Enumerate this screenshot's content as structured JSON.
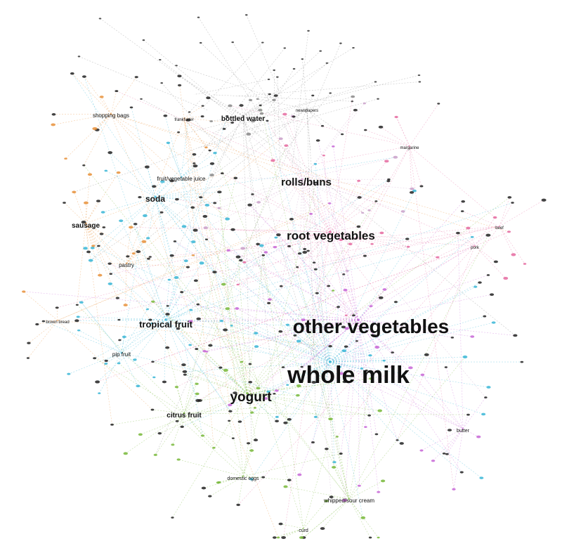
{
  "graph": {
    "hubs": [
      {
        "id": "whole-milk",
        "label": "whole milk",
        "color": "#38b6d6",
        "weight": 10
      },
      {
        "id": "other-vegetables",
        "label": "other vegetables",
        "color": "#c766d6",
        "weight": 9
      },
      {
        "id": "yogurt",
        "label": "yogurt",
        "color": "#78b83a",
        "weight": 6
      },
      {
        "id": "root-vegetables",
        "label": "root vegetables",
        "color": "#e56aa0",
        "weight": 5
      },
      {
        "id": "rolls-buns",
        "label": "rolls/buns",
        "color": "#c9a0c9",
        "weight": 4
      },
      {
        "id": "tropical-fruit",
        "label": "tropical fruit",
        "color": "#38b6d6",
        "weight": 4
      },
      {
        "id": "soda",
        "label": "soda",
        "color": "#38b6d6",
        "weight": 3
      },
      {
        "id": "bottled-water",
        "label": "bottled water",
        "color": "#888888",
        "weight": 2
      },
      {
        "id": "sausage",
        "label": "sausage",
        "color": "#e8903a",
        "weight": 2
      },
      {
        "id": "citrus-fruit",
        "label": "citrus fruit",
        "color": "#78b83a",
        "weight": 2
      },
      {
        "id": "shopping-bags",
        "label": "shopping bags",
        "color": "#e8903a",
        "weight": 1
      },
      {
        "id": "fruit-vegetable-juice",
        "label": "fruit/vegetable juice",
        "color": "#38b6d6",
        "weight": 1
      },
      {
        "id": "pastry",
        "label": "pastry",
        "color": "#e8903a",
        "weight": 1
      },
      {
        "id": "pip-fruit",
        "label": "pip fruit",
        "color": "#38b6d6",
        "weight": 1
      },
      {
        "id": "domestic-eggs",
        "label": "domestic eggs",
        "color": "#78b83a",
        "weight": 1
      },
      {
        "id": "whipped-sour-cream",
        "label": "whipped/sour cream",
        "color": "#78b83a",
        "weight": 1
      },
      {
        "id": "butter",
        "label": "butter",
        "color": "#c766d6",
        "weight": 1
      },
      {
        "id": "brown-bread",
        "label": "brown bread",
        "color": "#e8903a",
        "weight": 0
      },
      {
        "id": "newspapers",
        "label": "newspapers",
        "color": "#888888",
        "weight": 0
      },
      {
        "id": "margarine",
        "label": "margarine",
        "color": "#e56aa0",
        "weight": 0
      },
      {
        "id": "pork",
        "label": "pork",
        "color": "#e56aa0",
        "weight": 0
      },
      {
        "id": "beef",
        "label": "beef",
        "color": "#e56aa0",
        "weight": 0
      },
      {
        "id": "frankfurter",
        "label": "frankfurter",
        "color": "#e8903a",
        "weight": 0
      },
      {
        "id": "curd",
        "label": "curd",
        "color": "#78b83a",
        "weight": 0
      }
    ]
  }
}
